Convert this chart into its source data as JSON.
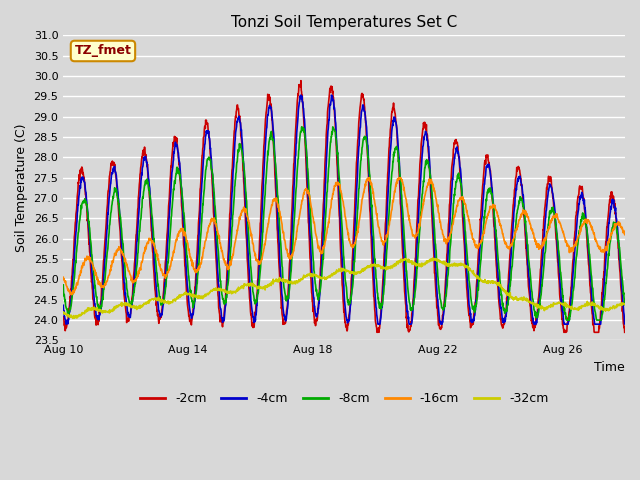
{
  "title": "Tonzi Soil Temperatures Set C",
  "xlabel": "Time",
  "ylabel": "Soil Temperature (C)",
  "ylim": [
    23.5,
    31.0
  ],
  "yticks": [
    23.5,
    24.0,
    24.5,
    25.0,
    25.5,
    26.0,
    26.5,
    27.0,
    27.5,
    28.0,
    28.5,
    29.0,
    29.5,
    30.0,
    30.5,
    31.0
  ],
  "series_colors": {
    "-2cm": "#cc0000",
    "-4cm": "#0000cc",
    "-8cm": "#00aa00",
    "-16cm": "#ff8800",
    "-32cm": "#cccc00"
  },
  "legend_label": "TZ_fmet",
  "legend_box_color": "#ffffcc",
  "legend_box_border": "#cc8800",
  "background_color": "#d8d8d8",
  "grid_color": "#ffffff",
  "x_ticks_days": [
    10,
    14,
    18,
    22,
    26
  ],
  "x_tick_labels": [
    "Aug 10",
    "Aug 14",
    "Aug 18",
    "Aug 22",
    "Aug 26"
  ],
  "xlim": [
    10,
    28
  ]
}
